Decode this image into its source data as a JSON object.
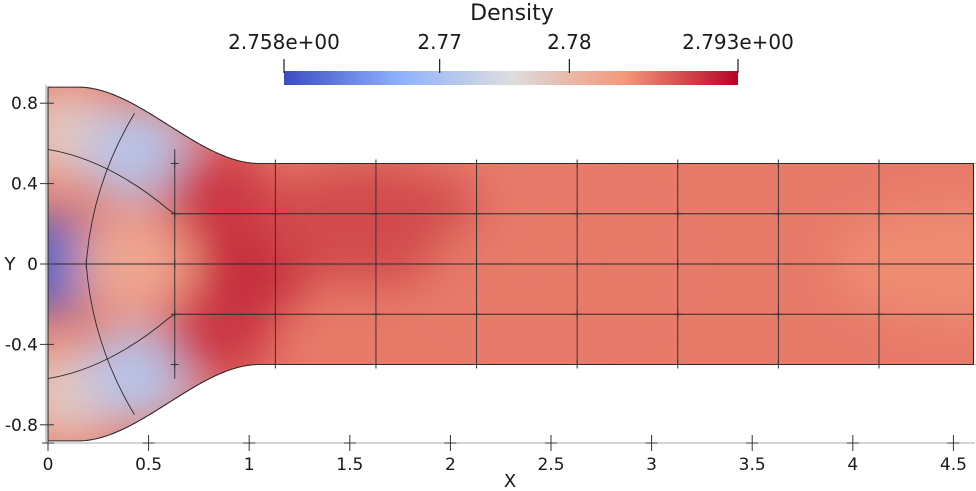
{
  "chart_data": {
    "type": "heatmap",
    "title": "Density",
    "colorbar": {
      "min": 2.758,
      "max": 2.793,
      "tick_labels": [
        "2.758e+00",
        "2.77",
        "2.78",
        "2.793e+00"
      ],
      "tick_values": [
        2.758,
        2.77,
        2.78,
        2.793
      ],
      "colormap": [
        "#3b4cc0",
        "#8db0fe",
        "#dddddd",
        "#f4987a",
        "#b40426"
      ]
    },
    "xlabel": "X",
    "ylabel": "Y",
    "xlim": [
      0,
      4.6
    ],
    "ylim": [
      -0.88,
      0.88
    ],
    "xticks": [
      0,
      0.5,
      1,
      1.5,
      2,
      2.5,
      3,
      3.5,
      4,
      4.5
    ],
    "xtick_labels": [
      "0",
      "0.5",
      "1",
      "1.5",
      "2",
      "2.5",
      "3",
      "3.5",
      "4",
      "4.5"
    ],
    "yticks": [
      0.8,
      0.4,
      0,
      -0.4,
      -0.8
    ],
    "ytick_labels": [
      "0.8",
      "0.4",
      "0",
      "-0.4",
      "-0.8"
    ],
    "domain": {
      "inlet_half_height": 0.88,
      "channel_half_height": 0.5,
      "contraction_end_x": 0.7,
      "outlet_x": 4.6
    },
    "field_samples": [
      {
        "x": 0.02,
        "y": 0.0,
        "density": 2.76
      },
      {
        "x": 0.1,
        "y": 0.65,
        "density": 2.778
      },
      {
        "x": 0.1,
        "y": -0.65,
        "density": 2.778
      },
      {
        "x": 0.45,
        "y": 0.55,
        "density": 2.771
      },
      {
        "x": 0.45,
        "y": -0.55,
        "density": 2.771
      },
      {
        "x": 0.4,
        "y": 0.0,
        "density": 2.782
      },
      {
        "x": 0.85,
        "y": 0.35,
        "density": 2.79
      },
      {
        "x": 0.85,
        "y": -0.35,
        "density": 2.79
      },
      {
        "x": 1.05,
        "y": 0.0,
        "density": 2.791
      },
      {
        "x": 1.6,
        "y": 0.2,
        "density": 2.789
      },
      {
        "x": 2.5,
        "y": 0.0,
        "density": 2.786
      },
      {
        "x": 4.5,
        "y": 0.0,
        "density": 2.785
      }
    ]
  }
}
